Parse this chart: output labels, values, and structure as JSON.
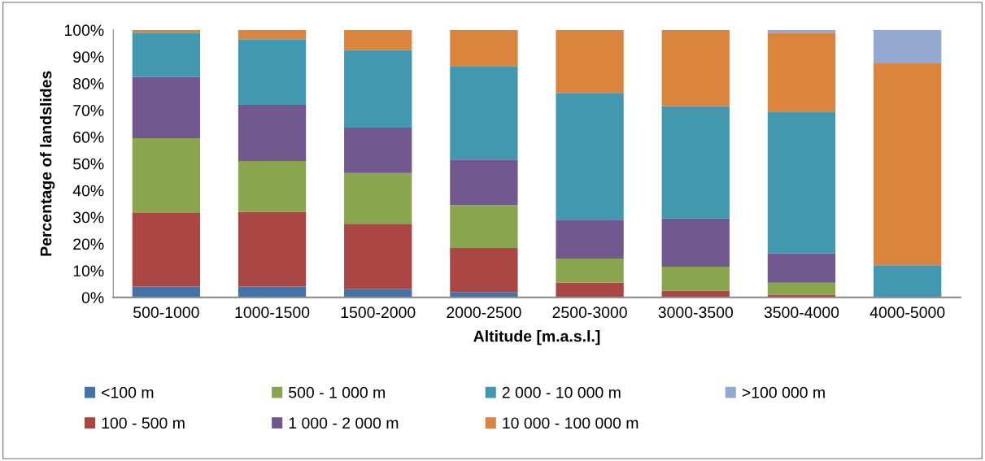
{
  "chart_data": {
    "type": "bar",
    "stacked": true,
    "xlabel": "Altitude [m.a.s.l.]",
    "ylabel": "Percentage of landslides",
    "categories": [
      "500-1000",
      "1000-1500",
      "1500-2000",
      "2000-2500",
      "2500-3000",
      "3000-3500",
      "3500-4000",
      "4000-5000"
    ],
    "series": [
      {
        "name": "<100 m",
        "color": "#4572a7",
        "values": [
          4,
          4,
          3,
          2,
          0,
          0,
          0,
          0
        ]
      },
      {
        "name": "100 - 500 m",
        "color": "#aa4643",
        "values": [
          27.5,
          28,
          24.5,
          16.5,
          5.5,
          2.5,
          1,
          0
        ]
      },
      {
        "name": "500 - 1 000 m",
        "color": "#89a54e",
        "values": [
          28,
          19,
          19,
          16,
          9,
          9,
          4.5,
          0
        ]
      },
      {
        "name": "1 000 - 2 000 m",
        "color": "#71588f",
        "values": [
          23,
          21,
          17,
          17,
          14.5,
          18,
          11,
          0
        ]
      },
      {
        "name": "2 000 - 10 000 m",
        "color": "#4198af",
        "values": [
          16.5,
          24.5,
          29,
          35,
          47.5,
          42,
          53,
          12
        ]
      },
      {
        "name": "10 000 - 100 000 m",
        "color": "#db843d",
        "values": [
          1,
          3.5,
          7.5,
          13.5,
          23.5,
          28.5,
          29.5,
          75.5
        ]
      },
      {
        "name": ">100 000 m",
        "color": "#93a9cf",
        "values": [
          0,
          0,
          0,
          0,
          0,
          0,
          1,
          12.5
        ]
      }
    ],
    "ylim": [
      0,
      100
    ],
    "yticks": [
      {
        "value": 0,
        "label": "0%"
      },
      {
        "value": 10,
        "label": "10%"
      },
      {
        "value": 20,
        "label": "20%"
      },
      {
        "value": 30,
        "label": "30%"
      },
      {
        "value": 40,
        "label": "40%"
      },
      {
        "value": 50,
        "label": "50%"
      },
      {
        "value": 60,
        "label": "60%"
      },
      {
        "value": 70,
        "label": "70%"
      },
      {
        "value": 80,
        "label": "80%"
      },
      {
        "value": 90,
        "label": "90%"
      },
      {
        "value": 100,
        "label": "100%"
      }
    ],
    "grid": false,
    "legend": "bottom"
  }
}
